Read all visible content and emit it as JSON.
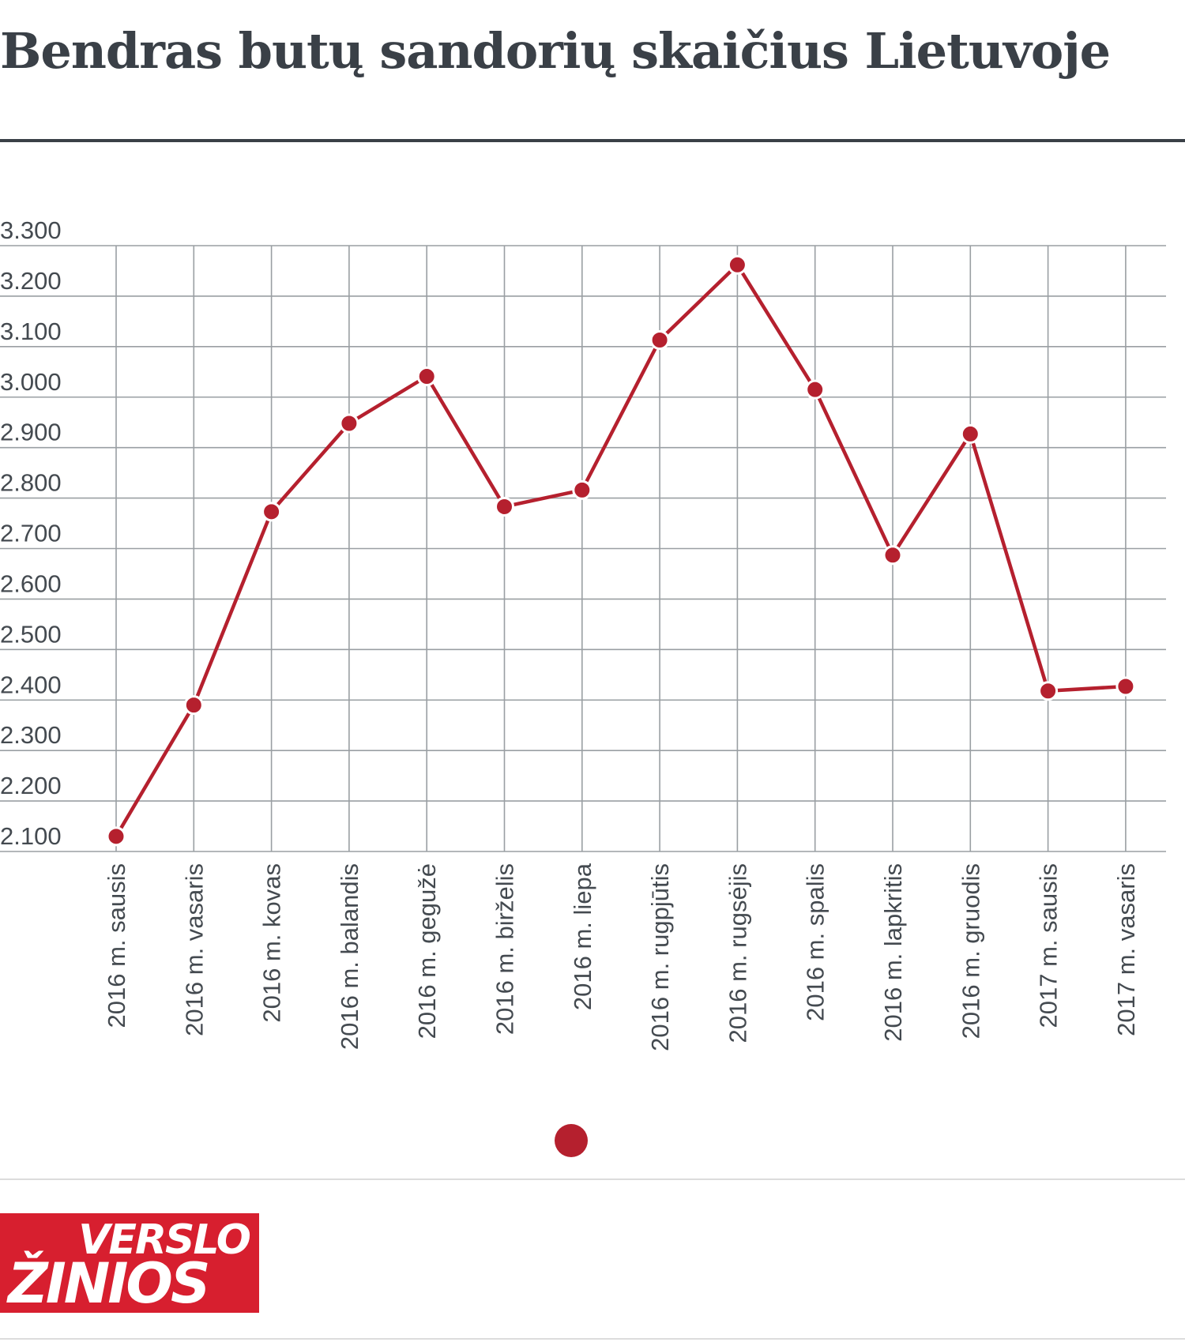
{
  "title": "Bendras butų sandorių skaičius Lietuvoje",
  "colors": {
    "line": "#b5202e",
    "grid": "#9a9fa3",
    "text": "#3a4047"
  },
  "logo": {
    "line1": "VERSLO",
    "line2": "ŽINIOS"
  },
  "chart_data": {
    "type": "line",
    "title": "Bendras butų sandorių skaičius Lietuvoje",
    "xlabel": "",
    "ylabel": "",
    "ylim": [
      2100,
      3300
    ],
    "yticks": [
      2100,
      2200,
      2300,
      2400,
      2500,
      2600,
      2700,
      2800,
      2900,
      3000,
      3100,
      3200,
      3300
    ],
    "ytick_labels": [
      "2.100",
      "2.200",
      "2.300",
      "2.400",
      "2.500",
      "2.600",
      "2.700",
      "2.800",
      "2.900",
      "3.000",
      "3.100",
      "3.200",
      "3.300"
    ],
    "grid": true,
    "legend": "bottom-center",
    "categories": [
      "2016 m. sausis",
      "2016 m. vasaris",
      "2016 m. kovas",
      "2016 m. balandis",
      "2016 m. gegužė",
      "2016 m. birželis",
      "2016 m. liepa",
      "2016 m. rugpjūtis",
      "2016 m. rugsėjis",
      "2016 m. spalis",
      "2016 m. lapkritis",
      "2016 m. gruodis",
      "2017 m. sausis",
      "2017 m. vasaris"
    ],
    "series": [
      {
        "values": [
          2130,
          2390,
          2773,
          2948,
          3041,
          2783,
          2816,
          3113,
          3262,
          3015,
          2687,
          2927,
          2418,
          2427
        ]
      }
    ]
  }
}
